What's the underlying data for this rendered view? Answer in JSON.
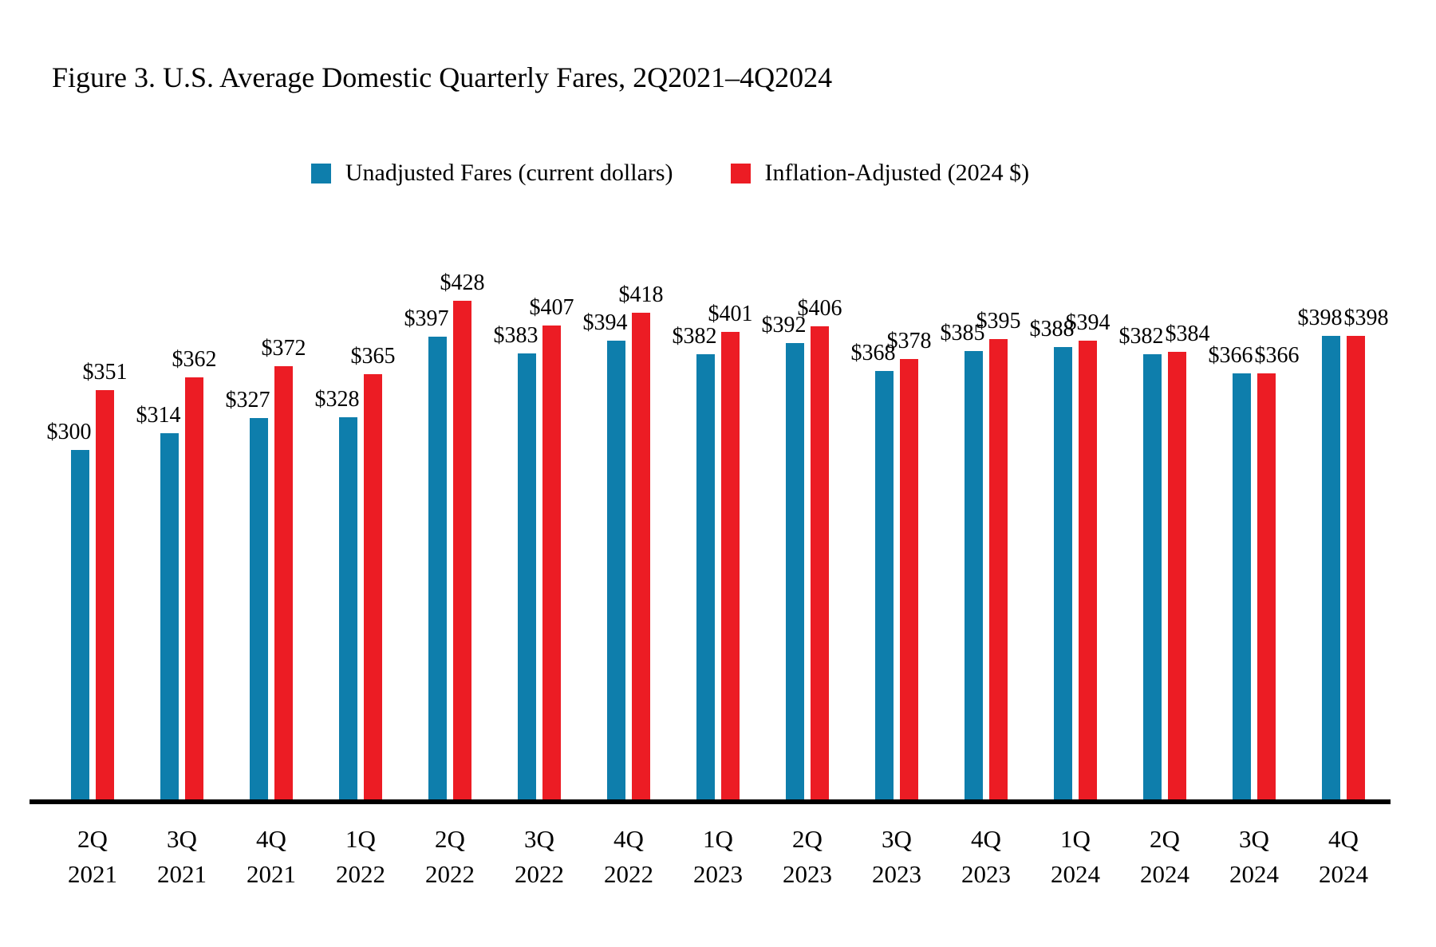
{
  "title": "Figure 3. U.S. Average Domestic Quarterly Fares, 2Q2021–4Q2024",
  "colors": {
    "unadjusted_blue": "#0E7EAC",
    "adjusted_red": "#EC1C24",
    "axis_line": "#000000"
  },
  "legend": {
    "items": [
      {
        "label": "Unadjusted Fares (current dollars)",
        "color": "#0E7EAC"
      },
      {
        "label": "Inflation-Adjusted (2024 $)",
        "color": "#EC1C24"
      }
    ]
  },
  "chart_data": {
    "type": "bar",
    "title": "Figure 3. U.S. Average Domestic Quarterly Fares, 2Q2021–4Q2024",
    "categories": [
      "2Q 2021",
      "3Q 2021",
      "4Q 2021",
      "1Q 2022",
      "2Q 2022",
      "3Q 2022",
      "4Q 2022",
      "1Q 2023",
      "2Q 2023",
      "3Q 2023",
      "4Q 2023",
      "1Q 2024",
      "2Q 2024",
      "3Q 2024",
      "4Q 2024"
    ],
    "series": [
      {
        "name": "Unadjusted Fares (current dollars)",
        "color": "#0E7EAC",
        "values": [
          300,
          314,
          327,
          328,
          397,
          383,
          394,
          382,
          392,
          368,
          385,
          388,
          382,
          366,
          398
        ]
      },
      {
        "name": "Inflation-Adjusted (2024 $)",
        "color": "#EC1C24",
        "values": [
          351,
          362,
          372,
          365,
          428,
          407,
          418,
          401,
          406,
          378,
          395,
          394,
          384,
          366,
          398
        ]
      }
    ],
    "data_label_prefix": "$",
    "data_labels": true,
    "xlabel": "",
    "ylabel": "",
    "ylim": [
      0,
      440
    ],
    "grid": false,
    "y_axis_visible": false,
    "x_axis_line_visible": true,
    "legend_position": "top"
  }
}
